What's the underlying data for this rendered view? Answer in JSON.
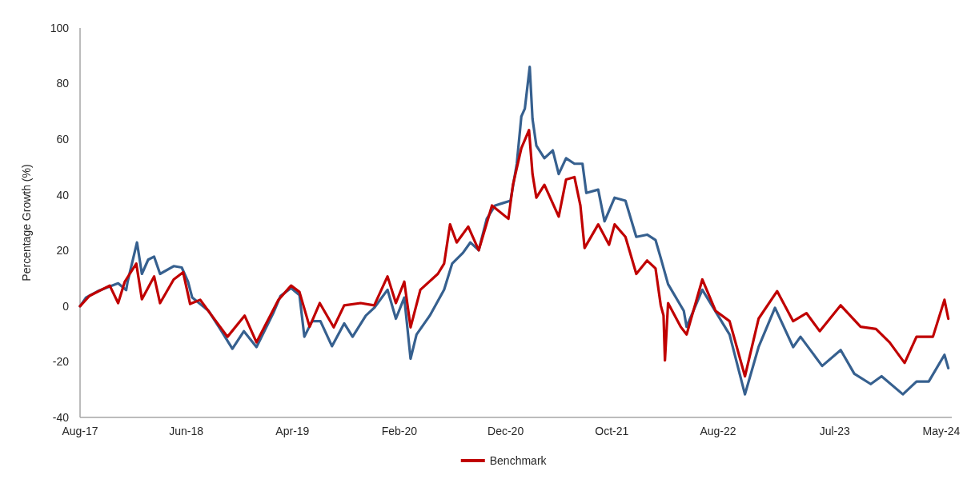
{
  "chart_data": {
    "type": "line",
    "ylabel": "Percentage Growth (%)",
    "xlim": [
      "2017-08-01",
      "2024-05-31"
    ],
    "xticks": [
      {
        "value": "2017-08-01",
        "label": "Aug-17"
      },
      {
        "value": "2018-06-01",
        "label": "Jun-18"
      },
      {
        "value": "2019-04-01",
        "label": "Apr-19"
      },
      {
        "value": "2020-02-01",
        "label": "Feb-20"
      },
      {
        "value": "2020-12-01",
        "label": "Dec-20"
      },
      {
        "value": "2021-10-01",
        "label": "Oct-21"
      },
      {
        "value": "2022-08-01",
        "label": "Aug-22"
      },
      {
        "value": "2023-07-01",
        "label": "Jul-23"
      },
      {
        "value": "2024-05-01",
        "label": "May-24"
      }
    ],
    "ylim": [
      -40,
      100
    ],
    "yticks": [
      -40,
      -20,
      0,
      20,
      40,
      60,
      80,
      100
    ],
    "grid": false,
    "legend": "bottom",
    "marker": "none",
    "line_style": "solid",
    "series": [
      {
        "color": "#36608f",
        "x": [
          "2017-08-01",
          "2017-08-18",
          "2017-09-21",
          "2017-10-25",
          "2017-11-18",
          "2017-12-11",
          "2017-12-15",
          "2018-01-11",
          "2018-01-25",
          "2018-02-12",
          "2018-03-01",
          "2018-03-18",
          "2018-04-26",
          "2018-05-19",
          "2018-06-06",
          "2018-06-18",
          "2018-08-04",
          "2018-09-06",
          "2018-10-11",
          "2018-11-13",
          "2018-12-19",
          "2019-02-05",
          "2019-02-26",
          "2019-03-28",
          "2019-04-21",
          "2019-05-05",
          "2019-05-27",
          "2019-06-20",
          "2019-07-23",
          "2019-08-27",
          "2019-09-20",
          "2019-10-28",
          "2019-11-21",
          "2019-12-29",
          "2020-01-22",
          "2020-02-15",
          "2020-03-04",
          "2020-03-21",
          "2020-04-28",
          "2020-06-08",
          "2020-07-01",
          "2020-08-01",
          "2020-08-22",
          "2020-09-15",
          "2020-10-08",
          "2020-11-01",
          "2020-11-22",
          "2020-12-15",
          "2021-01-02",
          "2021-01-15",
          "2021-01-25",
          "2021-02-08",
          "2021-02-16",
          "2021-02-27",
          "2021-03-22",
          "2021-04-15",
          "2021-05-02",
          "2021-05-23",
          "2021-06-16",
          "2021-07-09",
          "2021-07-20",
          "2021-08-23",
          "2021-09-10",
          "2021-10-09",
          "2021-11-09",
          "2021-12-10",
          "2022-01-10",
          "2022-02-03",
          "2022-02-18",
          "2022-03-11",
          "2022-04-25",
          "2022-05-03",
          "2022-06-17",
          "2022-09-03",
          "2022-10-17",
          "2022-11-25",
          "2023-01-11",
          "2023-03-04",
          "2023-03-25",
          "2023-05-26",
          "2023-07-18",
          "2023-08-26",
          "2023-10-12",
          "2023-11-12",
          "2024-01-12",
          "2024-02-20",
          "2024-03-26",
          "2024-05-10",
          "2024-05-21"
        ],
        "values": [
          0,
          3.1,
          5.4,
          7.1,
          8.2,
          5.8,
          8.7,
          22.9,
          11.6,
          16.7,
          17.8,
          11.6,
          14.4,
          13.9,
          8.8,
          3.1,
          -1.7,
          -8.2,
          -15.3,
          -9.0,
          -14.7,
          -2.5,
          3.7,
          6.5,
          4.0,
          -11.0,
          -5.4,
          -5.4,
          -14.4,
          -6.2,
          -11.0,
          -3.4,
          -0.6,
          5.9,
          -4.5,
          3.1,
          -18.9,
          -10.2,
          -3.4,
          5.9,
          15.3,
          19.2,
          22.9,
          20.1,
          31.4,
          36.2,
          37.0,
          37.9,
          51.2,
          68.2,
          71.0,
          86.0,
          67.3,
          57.7,
          53.2,
          56.0,
          47.5,
          53.2,
          51.2,
          51.2,
          40.7,
          41.9,
          30.5,
          39.0,
          37.9,
          24.9,
          25.7,
          23.8,
          17.3,
          7.9,
          -1.7,
          -7.4,
          5.9,
          -10.2,
          -31.7,
          -14.7,
          -0.6,
          -14.7,
          -11.0,
          -21.5,
          -15.8,
          -24.3,
          -28.0,
          -25.2,
          -31.7,
          -27.1,
          -27.1,
          -17.5,
          -22.3
        ]
      },
      {
        "name": "Benchmark",
        "color": "#c00000",
        "x": [
          "2017-08-01",
          "2017-08-28",
          "2017-10-25",
          "2017-11-18",
          "2017-12-07",
          "2018-01-09",
          "2018-01-25",
          "2018-03-01",
          "2018-03-18",
          "2018-04-26",
          "2018-05-23",
          "2018-06-12",
          "2018-07-11",
          "2018-08-13",
          "2018-09-27",
          "2018-11-15",
          "2018-12-19",
          "2019-02-20",
          "2019-03-28",
          "2019-04-21",
          "2019-05-20",
          "2019-06-18",
          "2019-07-28",
          "2019-08-27",
          "2019-10-13",
          "2019-11-21",
          "2019-12-29",
          "2020-01-22",
          "2020-02-15",
          "2020-03-04",
          "2020-04-01",
          "2020-05-21",
          "2020-06-08",
          "2020-06-25",
          "2020-07-14",
          "2020-08-16",
          "2020-09-15",
          "2020-10-23",
          "2020-12-09",
          "2020-12-22",
          "2021-01-15",
          "2021-02-06",
          "2021-02-16",
          "2021-02-27",
          "2021-03-22",
          "2021-05-02",
          "2021-05-23",
          "2021-06-16",
          "2021-07-03",
          "2021-07-15",
          "2021-08-23",
          "2021-09-23",
          "2021-10-09",
          "2021-11-09",
          "2021-12-10",
          "2022-01-10",
          "2022-02-03",
          "2022-02-18",
          "2022-02-26",
          "2022-03-02",
          "2022-03-11",
          "2022-04-16",
          "2022-05-03",
          "2022-06-17",
          "2022-07-25",
          "2022-09-03",
          "2022-10-17",
          "2022-11-25",
          "2023-01-17",
          "2023-03-04",
          "2023-04-11",
          "2023-05-19",
          "2023-07-18",
          "2023-09-13",
          "2023-10-27",
          "2023-12-05",
          "2024-01-17",
          "2024-02-20",
          "2024-04-07",
          "2024-05-10",
          "2024-05-21"
        ],
        "values": [
          0,
          3.7,
          7.4,
          1.1,
          8.8,
          15.3,
          2.5,
          10.7,
          1.1,
          9.6,
          12.2,
          0.8,
          2.3,
          -3.4,
          -11.0,
          -3.4,
          -13.0,
          2.3,
          7.4,
          5.1,
          -7.4,
          1.1,
          -7.6,
          0.3,
          1.1,
          0.3,
          10.7,
          1.1,
          8.8,
          -7.6,
          5.9,
          11.6,
          15.3,
          29.4,
          22.9,
          28.6,
          20.1,
          36.2,
          31.4,
          43.6,
          56.8,
          63.3,
          47.5,
          39.0,
          43.6,
          32.2,
          45.5,
          46.4,
          36.2,
          20.9,
          29.4,
          22.1,
          29.4,
          24.9,
          11.6,
          16.4,
          13.6,
          0.3,
          -3.4,
          -19.5,
          1.1,
          -7.4,
          -10.2,
          9.6,
          -1.7,
          -5.4,
          -25.2,
          -4.5,
          5.4,
          -5.4,
          -2.5,
          -9.0,
          0.3,
          -7.4,
          -8.2,
          -13.0,
          -20.4,
          -11.0,
          -11.0,
          2.3,
          -4.5
        ]
      }
    ]
  }
}
